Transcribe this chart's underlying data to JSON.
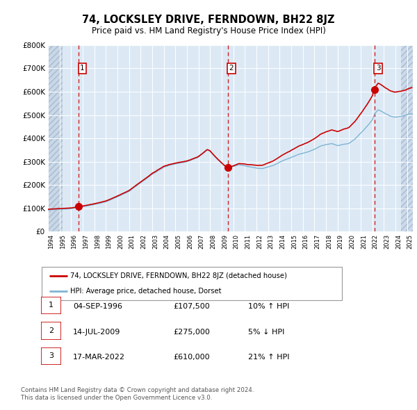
{
  "title": "74, LOCKSLEY DRIVE, FERNDOWN, BH22 8JZ",
  "subtitle": "Price paid vs. HM Land Registry's House Price Index (HPI)",
  "sale_times": [
    1996.667,
    2009.542,
    2022.208
  ],
  "sale_prices": [
    107500,
    275000,
    610000
  ],
  "sale_labels": [
    "1",
    "2",
    "3"
  ],
  "legend_property": "74, LOCKSLEY DRIVE, FERNDOWN, BH22 8JZ (detached house)",
  "legend_hpi": "HPI: Average price, detached house, Dorset",
  "table_rows": [
    [
      "1",
      "04-SEP-1996",
      "£107,500",
      "10% ↑ HPI"
    ],
    [
      "2",
      "14-JUL-2009",
      "£275,000",
      "5% ↓ HPI"
    ],
    [
      "3",
      "17-MAR-2022",
      "£610,000",
      "21% ↑ HPI"
    ]
  ],
  "footnote1": "Contains HM Land Registry data © Crown copyright and database right 2024.",
  "footnote2": "This data is licensed under the Open Government Licence v3.0.",
  "property_color": "#cc0000",
  "hpi_color": "#7fb3d3",
  "vline_color": "#cc0000",
  "plot_bg": "#dce9f5",
  "ylim": [
    0,
    800000
  ],
  "xlim_start": 1994.0,
  "xlim_end": 2025.5,
  "hatch_end": 1995.25
}
